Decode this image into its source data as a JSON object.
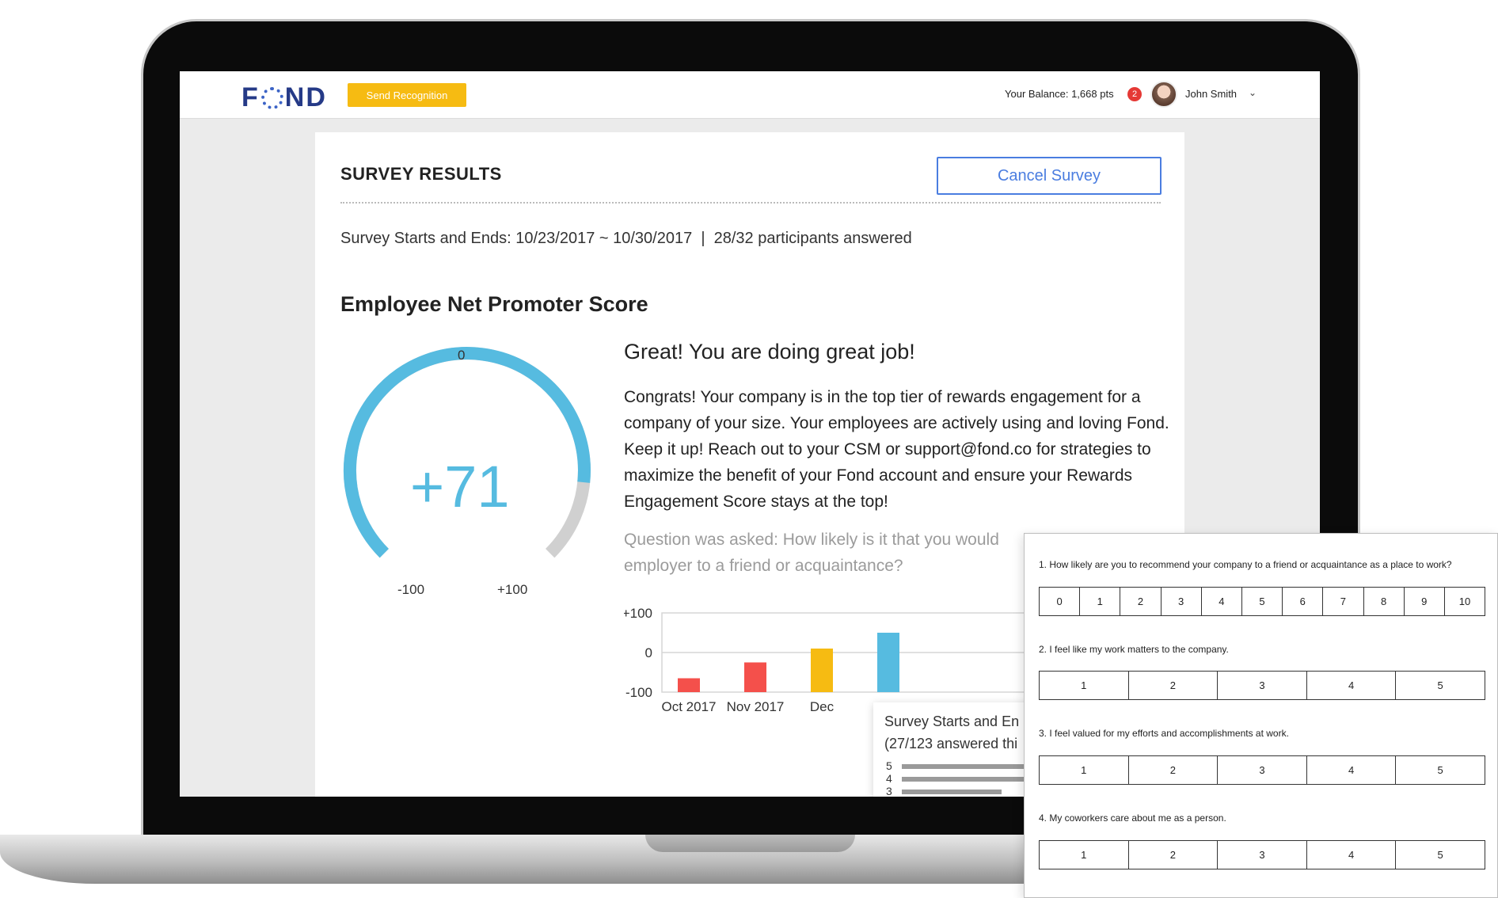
{
  "header": {
    "logo": "FOND",
    "send_recognition": "Send Recognition",
    "balance": "Your Balance: 1,668 pts",
    "notifications": "2",
    "user_name": "John Smith"
  },
  "survey": {
    "title": "SURVEY RESULTS",
    "cancel_label": "Cancel Survey",
    "meta": "Survey Starts and Ends: 10/23/2017 ~ 10/30/2017  |  28/32 participants answered",
    "section_title": "Employee Net Promoter Score",
    "gauge": {
      "top_label": "0",
      "value_label": "+71",
      "min_label": "-100",
      "max_label": "+100",
      "value": 71,
      "min": -100,
      "max": 100
    },
    "headline": "Great! You are doing great job!",
    "body": "Congrats! Your company is in the top tier of rewards engagement for a company of your size. Your employees are actively using and loving Fond. Keep it up! Reach out to your CSM or support@fond.co for strategies to maximize the benefit of your Fond account and ensure your Rewards Engagement Score stays at the top!",
    "question": "Question was asked: How likely is it that you would employer to a friend or acquaintance?"
  },
  "chart_data": {
    "type": "bar",
    "categories": [
      "Oct 2017",
      "Nov 2017",
      "Dec"
    ],
    "y_tick_labels": [
      "+100",
      "0",
      "-100"
    ],
    "ylim": [
      -100,
      100
    ],
    "bars": [
      {
        "category": "Oct 2017",
        "value": -65,
        "color": "#f4504b"
      },
      {
        "category": "Nov 2017",
        "value": -25,
        "color": "#f4504b"
      },
      {
        "category": "Dec",
        "value": 10,
        "color": "#f6bb12"
      },
      {
        "category": "",
        "value": 50,
        "color": "#56bbe0"
      }
    ]
  },
  "tooltip": {
    "line1": "Survey Starts and En",
    "line2": "(27/123 answered thi",
    "rows": [
      {
        "label": "5",
        "fraction": 0.95
      },
      {
        "label": "4",
        "fraction": 0.95
      },
      {
        "label": "3",
        "fraction": 0.6
      }
    ]
  },
  "questionnaire": {
    "questions": [
      {
        "text": "1. How likely are you to recommend your company to a friend or acquaintance as a place to work?",
        "options": [
          "0",
          "1",
          "2",
          "3",
          "4",
          "5",
          "6",
          "7",
          "8",
          "9",
          "10"
        ]
      },
      {
        "text": "2. I feel like my work matters to the company.",
        "options": [
          "1",
          "2",
          "3",
          "4",
          "5"
        ]
      },
      {
        "text": "3.  I feel valued for my efforts and accomplishments at work.",
        "options": [
          "1",
          "2",
          "3",
          "4",
          "5"
        ]
      },
      {
        "text": "4. My coworkers care about me as a person.",
        "options": [
          "1",
          "2",
          "3",
          "4",
          "5"
        ]
      }
    ]
  }
}
